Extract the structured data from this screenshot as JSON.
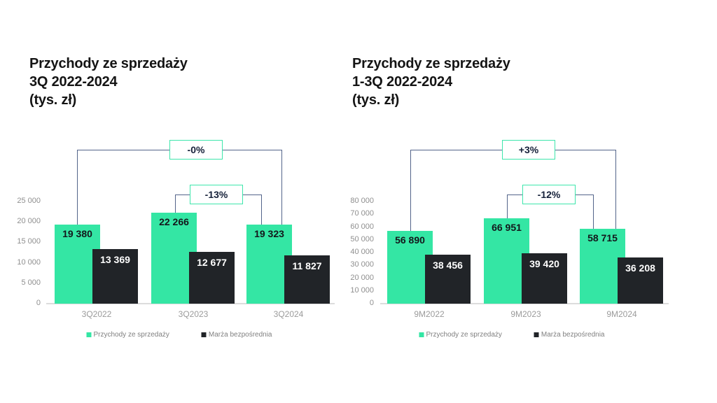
{
  "colors": {
    "background": "#FFFFFF",
    "revenue_green": "#34E6A4",
    "margin_dark": "#212428",
    "bracket_line": "#53648A",
    "annotation_border": "#3EE6AC",
    "annotation_text": "#16213A",
    "axis_text": "#8F8F8F",
    "category_text": "#9B9B9B",
    "legend_text": "#808080",
    "baseline": "#DCDCDC",
    "title_text": "#141414",
    "bar_label_dark": "#13171B",
    "bar_label_light": "#FFFFFF"
  },
  "chart_data": [
    {
      "type": "bar",
      "title": "Przychody ze sprzedaży 3Q 2022-2024 (tys. zł)",
      "title_lines": [
        "Przychody ze sprzedaży",
        "3Q 2022-2024",
        "(tys. zł)"
      ],
      "categories": [
        "3Q2022",
        "3Q2023",
        "3Q2024"
      ],
      "series": [
        {
          "name": "Przychody ze sprzedaży",
          "color": "#34E6A4",
          "values": [
            19380,
            22266,
            19323
          ],
          "labels": [
            "19 380",
            "22 266",
            "19 323"
          ]
        },
        {
          "name": "Marża bezpośrednia",
          "color": "#212428",
          "values": [
            13369,
            12677,
            11827
          ],
          "labels": [
            "13 369",
            "12 677",
            "11 827"
          ]
        }
      ],
      "ylim": [
        0,
        25000
      ],
      "yticks": [
        "25 000",
        "20 000",
        "15 000",
        "10 000",
        "5 000",
        "0"
      ],
      "grid": false,
      "legend_position": "bottom",
      "annotations": [
        {
          "label": "-0%",
          "from": 0,
          "to": 2
        },
        {
          "label": "-13%",
          "from": 1,
          "to": 2
        }
      ]
    },
    {
      "type": "bar",
      "title": "Przychody ze sprzedaży 1-3Q 2022-2024 (tys. zł)",
      "title_lines": [
        "Przychody ze sprzedaży",
        "1-3Q 2022-2024",
        "(tys. zł)"
      ],
      "categories": [
        "9M2022",
        "9M2023",
        "9M2024"
      ],
      "series": [
        {
          "name": "Przychody ze sprzedaży",
          "color": "#34E6A4",
          "values": [
            56890,
            66951,
            58715
          ],
          "labels": [
            "56 890",
            "66 951",
            "58 715"
          ]
        },
        {
          "name": "Marża bezpośrednia",
          "color": "#212428",
          "values": [
            38456,
            39420,
            36208
          ],
          "labels": [
            "38 456",
            "39 420",
            "36 208"
          ]
        }
      ],
      "ylim": [
        0,
        80000
      ],
      "yticks": [
        "80 000",
        "70 000",
        "60 000",
        "50 000",
        "40 000",
        "30 000",
        "20 000",
        "10 000",
        "0"
      ],
      "grid": false,
      "legend_position": "bottom",
      "annotations": [
        {
          "label": "+3%",
          "from": 0,
          "to": 2
        },
        {
          "label": "-12%",
          "from": 1,
          "to": 2
        }
      ]
    }
  ]
}
